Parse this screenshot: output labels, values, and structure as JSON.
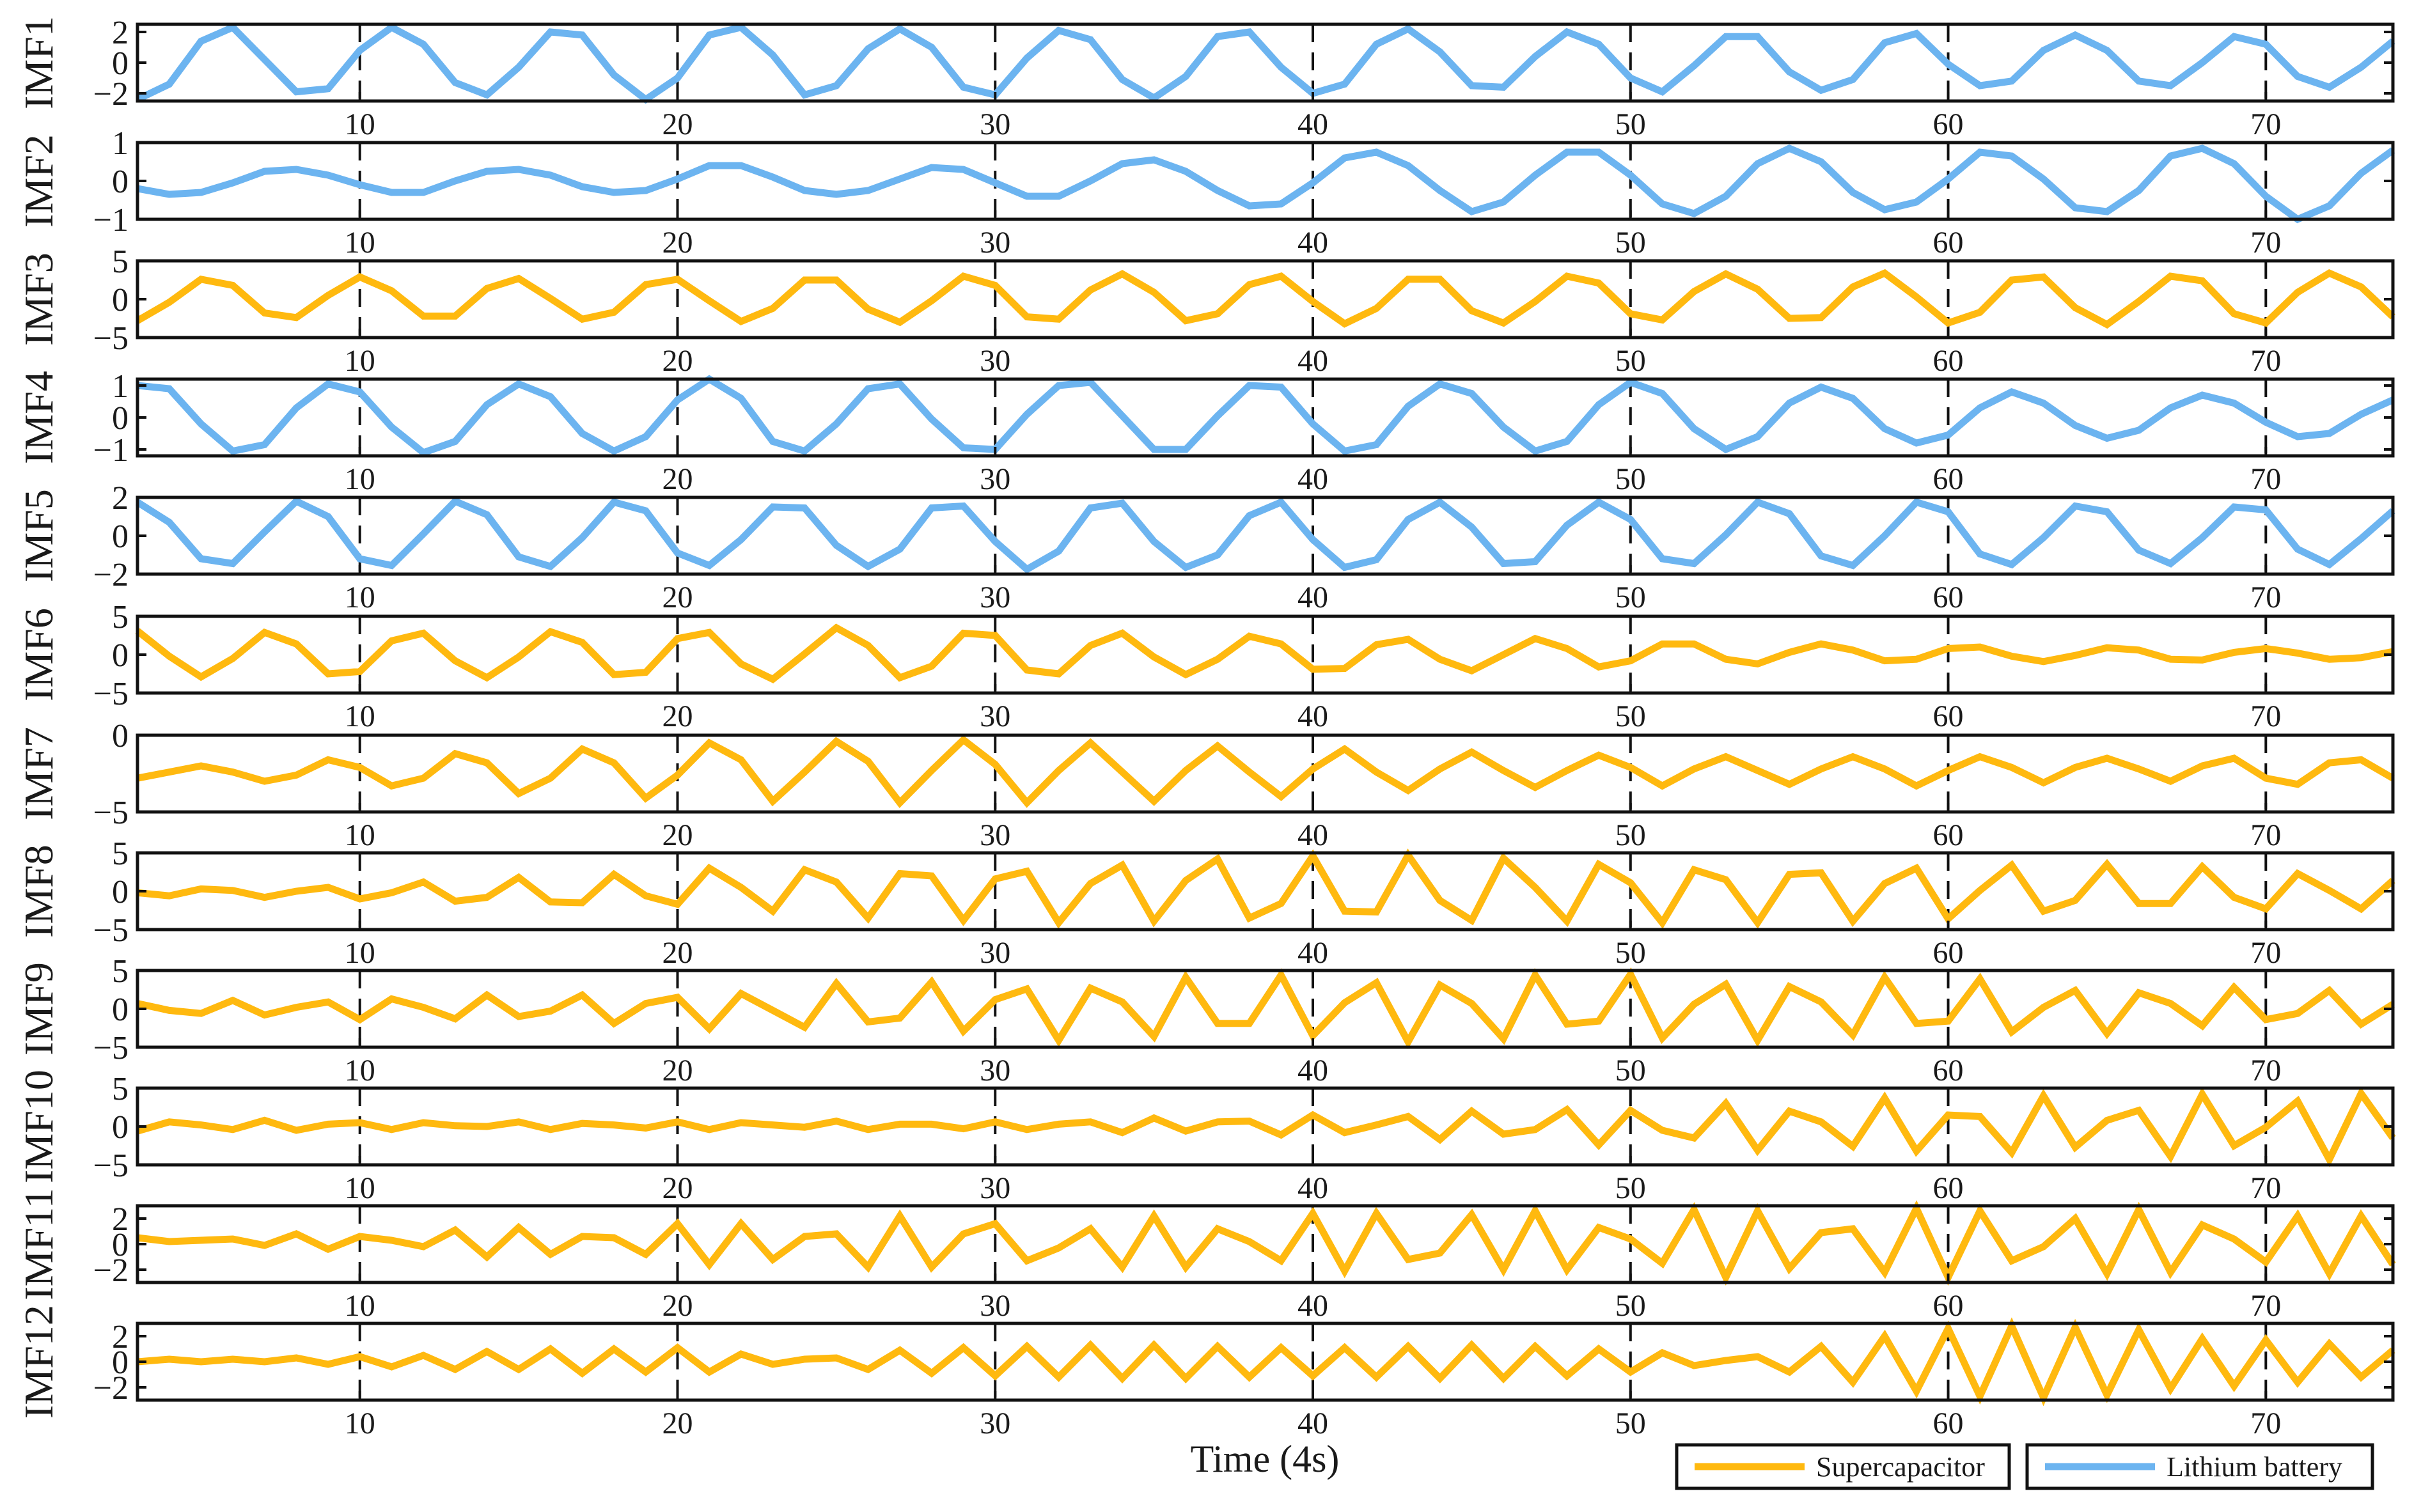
{
  "chart_data": {
    "type": "line",
    "xlabel": "Time (4s)",
    "xlim": [
      3,
      74
    ],
    "x_ticks": [
      10,
      20,
      30,
      40,
      50,
      60,
      70
    ],
    "x": [
      3,
      4,
      5,
      6,
      7,
      8,
      9,
      10,
      11,
      12,
      13,
      14,
      15,
      16,
      17,
      18,
      19,
      20,
      21,
      22,
      23,
      24,
      25,
      26,
      27,
      28,
      29,
      30,
      31,
      32,
      33,
      34,
      35,
      36,
      37,
      38,
      39,
      40,
      41,
      42,
      43,
      44,
      45,
      46,
      47,
      48,
      49,
      50,
      51,
      52,
      53,
      54,
      55,
      56,
      57,
      58,
      59,
      60,
      61,
      62,
      63,
      64,
      65,
      66,
      67,
      68,
      69,
      70,
      71,
      72,
      73,
      74
    ],
    "grid": "vertical dashed lines at x ticks",
    "legend": {
      "position": "bottom-right",
      "entries": [
        {
          "name": "Supercapacitor",
          "color": "#FFB90F"
        },
        {
          "name": "Lithium battery",
          "color": "#6CB4F0"
        }
      ]
    },
    "panels": [
      {
        "name": "IMF1",
        "device": "Lithium battery",
        "color": "#6CB4F0",
        "ylim": [
          -2.5,
          2.5
        ],
        "y_ticks": [
          2,
          0,
          -2
        ],
        "tick_labels": [
          "2",
          "0",
          "−2"
        ],
        "values": [
          -2.4,
          -1.4,
          1.4,
          2.3,
          0.2,
          -1.9,
          -1.7,
          0.8,
          2.3,
          1.2,
          -1.3,
          -2.1,
          -0.3,
          2.0,
          1.8,
          -0.8,
          -2.4,
          -1.0,
          1.8,
          2.3,
          0.5,
          -2.1,
          -1.5,
          0.9,
          2.2,
          1.0,
          -1.6,
          -2.1,
          0.3,
          2.1,
          1.5,
          -1.1,
          -2.3,
          -0.9,
          1.7,
          2.0,
          -0.3,
          -2.0,
          -1.4,
          1.2,
          2.2,
          0.7,
          -1.5,
          -1.6,
          0.4,
          2.0,
          1.2,
          -1.0,
          -1.9,
          -0.2,
          1.7,
          1.7,
          -0.6,
          -1.8,
          -1.1,
          1.3,
          1.9,
          -0.1,
          -1.5,
          -1.2,
          0.8,
          1.8,
          0.8,
          -1.2,
          -1.5,
          0.0,
          1.7,
          1.2,
          -0.9,
          -1.6,
          -0.3,
          1.4
        ]
      },
      {
        "name": "IMF2",
        "device": "Lithium battery",
        "color": "#6CB4F0",
        "ylim": [
          -1,
          1
        ],
        "y_ticks": [
          1,
          0,
          -1
        ],
        "tick_labels": [
          "1",
          "0",
          "−1"
        ],
        "values": [
          -0.2,
          -0.35,
          -0.3,
          -0.05,
          0.25,
          0.3,
          0.15,
          -0.1,
          -0.3,
          -0.3,
          0.0,
          0.25,
          0.3,
          0.15,
          -0.15,
          -0.3,
          -0.25,
          0.05,
          0.4,
          0.4,
          0.1,
          -0.25,
          -0.35,
          -0.25,
          0.05,
          0.35,
          0.3,
          -0.05,
          -0.4,
          -0.4,
          0.0,
          0.45,
          0.55,
          0.25,
          -0.25,
          -0.65,
          -0.6,
          -0.05,
          0.6,
          0.75,
          0.4,
          -0.25,
          -0.8,
          -0.55,
          0.15,
          0.75,
          0.75,
          0.15,
          -0.6,
          -0.85,
          -0.4,
          0.45,
          0.85,
          0.5,
          -0.3,
          -0.75,
          -0.55,
          0.05,
          0.75,
          0.65,
          0.05,
          -0.7,
          -0.8,
          -0.25,
          0.65,
          0.85,
          0.45,
          -0.4,
          -1.0,
          -0.65,
          0.2,
          0.8
        ]
      },
      {
        "name": "IMF3",
        "device": "Supercapacitor",
        "color": "#FFB90F",
        "ylim": [
          -5,
          5
        ],
        "y_ticks": [
          5,
          0,
          -5
        ],
        "tick_labels": [
          "5",
          "0",
          "−5"
        ],
        "values": [
          -2.8,
          -0.4,
          2.6,
          1.8,
          -1.8,
          -2.4,
          0.5,
          2.9,
          1.1,
          -2.2,
          -2.2,
          1.4,
          2.7,
          0.1,
          -2.6,
          -1.7,
          1.9,
          2.6,
          -0.2,
          -2.9,
          -1.2,
          2.5,
          2.5,
          -1.3,
          -3.0,
          -0.2,
          3.0,
          1.8,
          -2.3,
          -2.6,
          1.2,
          3.3,
          0.9,
          -2.8,
          -1.9,
          1.9,
          3.0,
          -0.3,
          -3.2,
          -1.2,
          2.6,
          2.6,
          -1.5,
          -3.1,
          -0.3,
          3.0,
          2.1,
          -1.9,
          -2.7,
          1.0,
          3.3,
          1.3,
          -2.5,
          -2.4,
          1.6,
          3.4,
          0.3,
          -3.1,
          -1.7,
          2.5,
          2.9,
          -1.1,
          -3.3,
          -0.3,
          3.0,
          2.4,
          -1.9,
          -3.1,
          0.9,
          3.4,
          1.6,
          -2.3
        ]
      },
      {
        "name": "IMF4",
        "device": "Lithium battery",
        "color": "#6CB4F0",
        "ylim": [
          -1.2,
          1.2
        ],
        "y_ticks": [
          1,
          0,
          -1
        ],
        "tick_labels": [
          "1",
          "0",
          "−1"
        ],
        "values": [
          1.0,
          0.9,
          -0.2,
          -1.05,
          -0.85,
          0.3,
          1.05,
          0.8,
          -0.3,
          -1.1,
          -0.75,
          0.4,
          1.05,
          0.65,
          -0.5,
          -1.05,
          -0.6,
          0.55,
          1.2,
          0.6,
          -0.75,
          -1.05,
          -0.2,
          0.9,
          1.05,
          -0.05,
          -0.95,
          -1.0,
          0.1,
          1.0,
          1.1,
          0.05,
          -1.0,
          -1.0,
          0.05,
          1.0,
          0.95,
          -0.2,
          -1.05,
          -0.85,
          0.35,
          1.05,
          0.75,
          -0.3,
          -1.05,
          -0.75,
          0.4,
          1.1,
          0.75,
          -0.35,
          -1.0,
          -0.6,
          0.45,
          0.95,
          0.6,
          -0.35,
          -0.8,
          -0.55,
          0.3,
          0.8,
          0.45,
          -0.25,
          -0.65,
          -0.4,
          0.3,
          0.7,
          0.45,
          -0.15,
          -0.6,
          -0.5,
          0.1,
          0.55
        ]
      },
      {
        "name": "IMF5",
        "device": "Lithium battery",
        "color": "#6CB4F0",
        "ylim": [
          -2,
          2
        ],
        "y_ticks": [
          2,
          0,
          -2
        ],
        "tick_labels": [
          "2",
          "0",
          "−2"
        ],
        "values": [
          1.75,
          0.7,
          -1.2,
          -1.45,
          0.2,
          1.8,
          1.0,
          -1.2,
          -1.55,
          0.1,
          1.8,
          1.1,
          -1.1,
          -1.6,
          -0.1,
          1.75,
          1.3,
          -0.9,
          -1.55,
          -0.2,
          1.5,
          1.45,
          -0.5,
          -1.6,
          -0.7,
          1.45,
          1.55,
          -0.3,
          -1.75,
          -0.8,
          1.45,
          1.7,
          -0.3,
          -1.65,
          -1.0,
          1.05,
          1.75,
          -0.2,
          -1.65,
          -1.25,
          0.85,
          1.75,
          0.45,
          -1.45,
          -1.35,
          0.55,
          1.75,
          0.85,
          -1.2,
          -1.45,
          0.05,
          1.75,
          1.15,
          -1.05,
          -1.55,
          0.0,
          1.75,
          1.25,
          -0.95,
          -1.5,
          -0.1,
          1.55,
          1.25,
          -0.75,
          -1.45,
          -0.1,
          1.5,
          1.35,
          -0.7,
          -1.5,
          -0.15,
          1.3
        ]
      },
      {
        "name": "IMF6",
        "device": "Supercapacitor",
        "color": "#FFB90F",
        "ylim": [
          -5,
          5
        ],
        "y_ticks": [
          5,
          0,
          -5
        ],
        "tick_labels": [
          "5",
          "0",
          "−5"
        ],
        "values": [
          3.1,
          -0.2,
          -2.9,
          -0.5,
          2.9,
          1.4,
          -2.5,
          -2.2,
          1.8,
          2.8,
          -0.8,
          -3.0,
          -0.3,
          3.0,
          1.6,
          -2.6,
          -2.3,
          2.1,
          2.9,
          -1.2,
          -3.2,
          0.1,
          3.5,
          1.2,
          -3.0,
          -1.5,
          2.8,
          2.5,
          -2.0,
          -2.5,
          1.2,
          2.8,
          -0.3,
          -2.6,
          -0.6,
          2.4,
          1.4,
          -1.9,
          -1.8,
          1.3,
          2.0,
          -0.6,
          -2.1,
          0.0,
          2.1,
          0.8,
          -1.6,
          -0.8,
          1.4,
          1.4,
          -0.6,
          -1.2,
          0.3,
          1.4,
          0.6,
          -0.8,
          -0.6,
          0.8,
          1.0,
          -0.2,
          -0.9,
          -0.1,
          0.9,
          0.6,
          -0.6,
          -0.7,
          0.3,
          0.8,
          0.2,
          -0.6,
          -0.4,
          0.4
        ]
      },
      {
        "name": "IMF7",
        "device": "Supercapacitor",
        "color": "#FFB90F",
        "ylim": [
          -5,
          0
        ],
        "y_ticks": [
          0,
          -5
        ],
        "tick_labels": [
          "0",
          "−5"
        ],
        "values": [
          -2.8,
          -2.4,
          -2.0,
          -2.4,
          -3.0,
          -2.6,
          -1.6,
          -2.1,
          -3.3,
          -2.8,
          -1.2,
          -1.8,
          -3.8,
          -2.8,
          -0.9,
          -1.8,
          -4.1,
          -2.6,
          -0.5,
          -1.6,
          -4.3,
          -2.4,
          -0.4,
          -1.7,
          -4.4,
          -2.3,
          -0.3,
          -1.9,
          -4.4,
          -2.3,
          -0.5,
          -2.4,
          -4.3,
          -2.3,
          -0.7,
          -2.4,
          -4.0,
          -2.2,
          -0.9,
          -2.4,
          -3.6,
          -2.2,
          -1.1,
          -2.3,
          -3.4,
          -2.3,
          -1.3,
          -2.1,
          -3.3,
          -2.2,
          -1.4,
          -2.3,
          -3.2,
          -2.2,
          -1.4,
          -2.2,
          -3.3,
          -2.3,
          -1.4,
          -2.1,
          -3.1,
          -2.1,
          -1.5,
          -2.2,
          -3.0,
          -2.0,
          -1.5,
          -2.8,
          -3.2,
          -1.8,
          -1.6,
          -2.8
        ]
      },
      {
        "name": "IMF8",
        "device": "Supercapacitor",
        "color": "#FFB90F",
        "ylim": [
          -5,
          5
        ],
        "y_ticks": [
          5,
          0,
          -5
        ],
        "tick_labels": [
          "5",
          "0",
          "−5"
        ],
        "values": [
          -0.2,
          -0.6,
          0.3,
          0.1,
          -0.8,
          0.0,
          0.5,
          -1.0,
          -0.2,
          1.2,
          -1.3,
          -0.8,
          1.8,
          -1.4,
          -1.5,
          2.2,
          -0.6,
          -1.7,
          3.0,
          0.5,
          -2.6,
          2.8,
          1.2,
          -3.5,
          2.3,
          2.0,
          -3.8,
          1.6,
          2.6,
          -4.1,
          1.0,
          3.4,
          -3.9,
          1.4,
          4.2,
          -3.5,
          -1.6,
          4.6,
          -2.6,
          -2.7,
          4.7,
          -1.2,
          -3.8,
          4.3,
          0.5,
          -3.9,
          3.5,
          1.1,
          -4.1,
          2.8,
          1.5,
          -4.1,
          2.2,
          2.4,
          -3.9,
          1.0,
          3.0,
          -3.6,
          0.1,
          3.4,
          -2.6,
          -1.2,
          3.5,
          -1.6,
          -1.6,
          3.2,
          -0.8,
          -2.3,
          2.3,
          0.1,
          -2.3,
          1.4
        ]
      },
      {
        "name": "IMF9",
        "device": "Supercapacitor",
        "color": "#FFB90F",
        "ylim": [
          -5,
          5
        ],
        "y_ticks": [
          5,
          0,
          -5
        ],
        "tick_labels": [
          "5",
          "0",
          "−5"
        ],
        "values": [
          0.7,
          -0.2,
          -0.6,
          1.1,
          -0.8,
          0.2,
          0.9,
          -1.4,
          1.3,
          0.2,
          -1.3,
          1.8,
          -1.0,
          -0.3,
          1.8,
          -1.9,
          0.7,
          1.5,
          -2.6,
          2.0,
          -0.2,
          -2.4,
          3.3,
          -1.7,
          -1.2,
          3.5,
          -2.9,
          1.2,
          2.6,
          -4.1,
          2.7,
          0.9,
          -3.6,
          4.1,
          -1.9,
          -1.9,
          4.4,
          -3.5,
          0.8,
          3.4,
          -4.3,
          3.1,
          0.7,
          -3.9,
          4.4,
          -2.0,
          -1.6,
          4.5,
          -3.8,
          0.6,
          3.2,
          -4.1,
          2.9,
          0.9,
          -3.4,
          4.1,
          -1.9,
          -1.6,
          3.9,
          -3.0,
          0.2,
          2.4,
          -3.2,
          2.1,
          0.7,
          -2.2,
          2.8,
          -1.4,
          -0.6,
          2.4,
          -2.0,
          0.6
        ]
      },
      {
        "name": "IMF10",
        "device": "Supercapacitor",
        "color": "#FFB90F",
        "ylim": [
          -5,
          5
        ],
        "y_ticks": [
          5,
          0,
          -5
        ],
        "tick_labels": [
          "5",
          "0",
          "−5"
        ],
        "values": [
          -0.6,
          0.6,
          0.2,
          -0.4,
          0.8,
          -0.5,
          0.3,
          0.5,
          -0.4,
          0.5,
          0.1,
          0.0,
          0.6,
          -0.4,
          0.4,
          0.2,
          -0.2,
          0.6,
          -0.4,
          0.5,
          0.2,
          -0.1,
          0.7,
          -0.4,
          0.3,
          0.3,
          -0.3,
          0.6,
          -0.4,
          0.3,
          0.6,
          -0.8,
          1.1,
          -0.6,
          0.6,
          0.7,
          -1.1,
          1.5,
          -0.8,
          0.2,
          1.3,
          -1.7,
          2.0,
          -1.0,
          -0.4,
          2.2,
          -2.4,
          2.1,
          -0.5,
          -1.5,
          3.0,
          -3.1,
          2.0,
          0.6,
          -2.6,
          3.7,
          -3.2,
          1.5,
          1.3,
          -3.4,
          4.0,
          -2.7,
          0.8,
          2.1,
          -3.9,
          4.2,
          -2.5,
          -0.1,
          3.3,
          -4.3,
          4.3,
          -1.5
        ]
      },
      {
        "name": "IMF11",
        "device": "Supercapacitor",
        "color": "#FFB90F",
        "ylim": [
          -3,
          3
        ],
        "y_ticks": [
          2,
          0,
          -2
        ],
        "tick_labels": [
          "2",
          "0",
          "−2"
        ],
        "values": [
          0.5,
          0.2,
          0.3,
          0.4,
          -0.1,
          0.8,
          -0.4,
          0.6,
          0.3,
          -0.2,
          1.1,
          -1.0,
          1.3,
          -0.8,
          0.6,
          0.5,
          -0.8,
          1.6,
          -1.6,
          1.6,
          -1.2,
          0.6,
          0.8,
          -1.8,
          2.2,
          -1.8,
          0.8,
          1.6,
          -1.3,
          -0.3,
          1.2,
          -1.8,
          2.2,
          -1.8,
          1.2,
          0.2,
          -1.3,
          2.4,
          -2.1,
          2.4,
          -1.2,
          -0.7,
          2.3,
          -2.0,
          2.6,
          -2.0,
          1.3,
          0.4,
          -1.5,
          2.7,
          -2.6,
          2.6,
          -1.9,
          0.9,
          1.2,
          -2.2,
          2.8,
          -2.6,
          2.6,
          -1.3,
          -0.2,
          2.0,
          -2.3,
          2.7,
          -2.2,
          1.5,
          0.4,
          -1.4,
          2.2,
          -2.3,
          2.2,
          -1.6
        ]
      },
      {
        "name": "IMF12",
        "device": "Supercapacitor",
        "color": "#FFB90F",
        "ylim": [
          -3,
          3
        ],
        "y_ticks": [
          2,
          0,
          -2
        ],
        "tick_labels": [
          "2",
          "0",
          "−2"
        ],
        "values": [
          0.0,
          0.2,
          0.0,
          0.2,
          0.0,
          0.3,
          -0.2,
          0.4,
          -0.4,
          0.5,
          -0.6,
          0.8,
          -0.6,
          1.0,
          -0.9,
          1.0,
          -0.8,
          1.1,
          -0.8,
          0.6,
          -0.2,
          0.2,
          0.3,
          -0.6,
          0.9,
          -0.9,
          1.1,
          -1.1,
          1.2,
          -1.2,
          1.3,
          -1.3,
          1.3,
          -1.3,
          1.2,
          -1.2,
          1.1,
          -1.1,
          1.1,
          -1.2,
          1.2,
          -1.3,
          1.3,
          -1.3,
          1.2,
          -1.1,
          1.0,
          -0.8,
          0.7,
          -0.3,
          0.1,
          0.4,
          -0.8,
          1.2,
          -1.6,
          2.0,
          -2.3,
          2.6,
          -2.7,
          2.8,
          -2.8,
          2.7,
          -2.6,
          2.5,
          -2.1,
          1.8,
          -1.9,
          1.7,
          -1.6,
          1.4,
          -1.2,
          0.9
        ]
      }
    ]
  }
}
